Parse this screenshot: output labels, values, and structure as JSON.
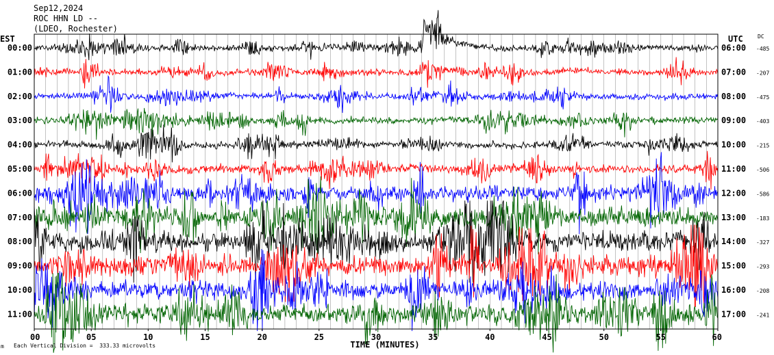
{
  "header": {
    "date": "Sep12,2024",
    "station": "ROC HHN LD --",
    "network": "(LDEO, Rochester)"
  },
  "left_tz": "EST",
  "right_tz": "UTC",
  "dc_header": "DC",
  "footer": {
    "corner_mark": "m",
    "scale_text": "Each Vertical Division =  333.33 microvolts"
  },
  "chart_data": {
    "type": "line",
    "title": "Sep12,2024 ROC HHN LD -- (LDEO, Rochester)",
    "xlabel": "TIME (MINUTES)",
    "ylabel": "",
    "xlim": [
      0,
      60
    ],
    "x_ticks": [
      "00",
      "05",
      "10",
      "15",
      "20",
      "25",
      "30",
      "35",
      "40",
      "45",
      "50",
      "55",
      "60"
    ],
    "grid": "vertical lines every minute",
    "colors": [
      "#000000",
      "#ff0000",
      "#0000ff",
      "#006400"
    ],
    "rows": [
      {
        "est": "00:00",
        "utc": "06:00",
        "dc": "-485",
        "color": "#000000",
        "noise": 0.55
      },
      {
        "est": "01:00",
        "utc": "07:00",
        "dc": "-207",
        "color": "#ff0000",
        "noise": 0.55
      },
      {
        "est": "02:00",
        "utc": "08:00",
        "dc": "-475",
        "color": "#0000ff",
        "noise": 0.55
      },
      {
        "est": "03:00",
        "utc": "09:00",
        "dc": "-403",
        "color": "#006400",
        "noise": 0.6
      },
      {
        "est": "04:00",
        "utc": "10:00",
        "dc": "-215",
        "color": "#000000",
        "noise": 0.6
      },
      {
        "est": "05:00",
        "utc": "11:00",
        "dc": "-506",
        "color": "#ff0000",
        "noise": 0.75
      },
      {
        "est": "06:00",
        "utc": "12:00",
        "dc": "-586",
        "color": "#0000ff",
        "noise": 1.4
      },
      {
        "est": "07:00",
        "utc": "13:00",
        "dc": "-183",
        "color": "#006400",
        "noise": 1.8
      },
      {
        "est": "08:00",
        "utc": "14:00",
        "dc": "-327",
        "color": "#000000",
        "noise": 1.8
      },
      {
        "est": "09:00",
        "utc": "15:00",
        "dc": "-293",
        "color": "#ff0000",
        "noise": 1.8
      },
      {
        "est": "10:00",
        "utc": "16:00",
        "dc": "-208",
        "color": "#0000ff",
        "noise": 1.6
      },
      {
        "est": "11:00",
        "utc": "17:00",
        "dc": "-241",
        "color": "#006400",
        "noise": 1.7
      }
    ],
    "events": [
      {
        "row": 0,
        "minute": 34.0,
        "peak": -4.2,
        "decay_minutes": 5.5,
        "label": "large transient near 34 min"
      }
    ]
  }
}
